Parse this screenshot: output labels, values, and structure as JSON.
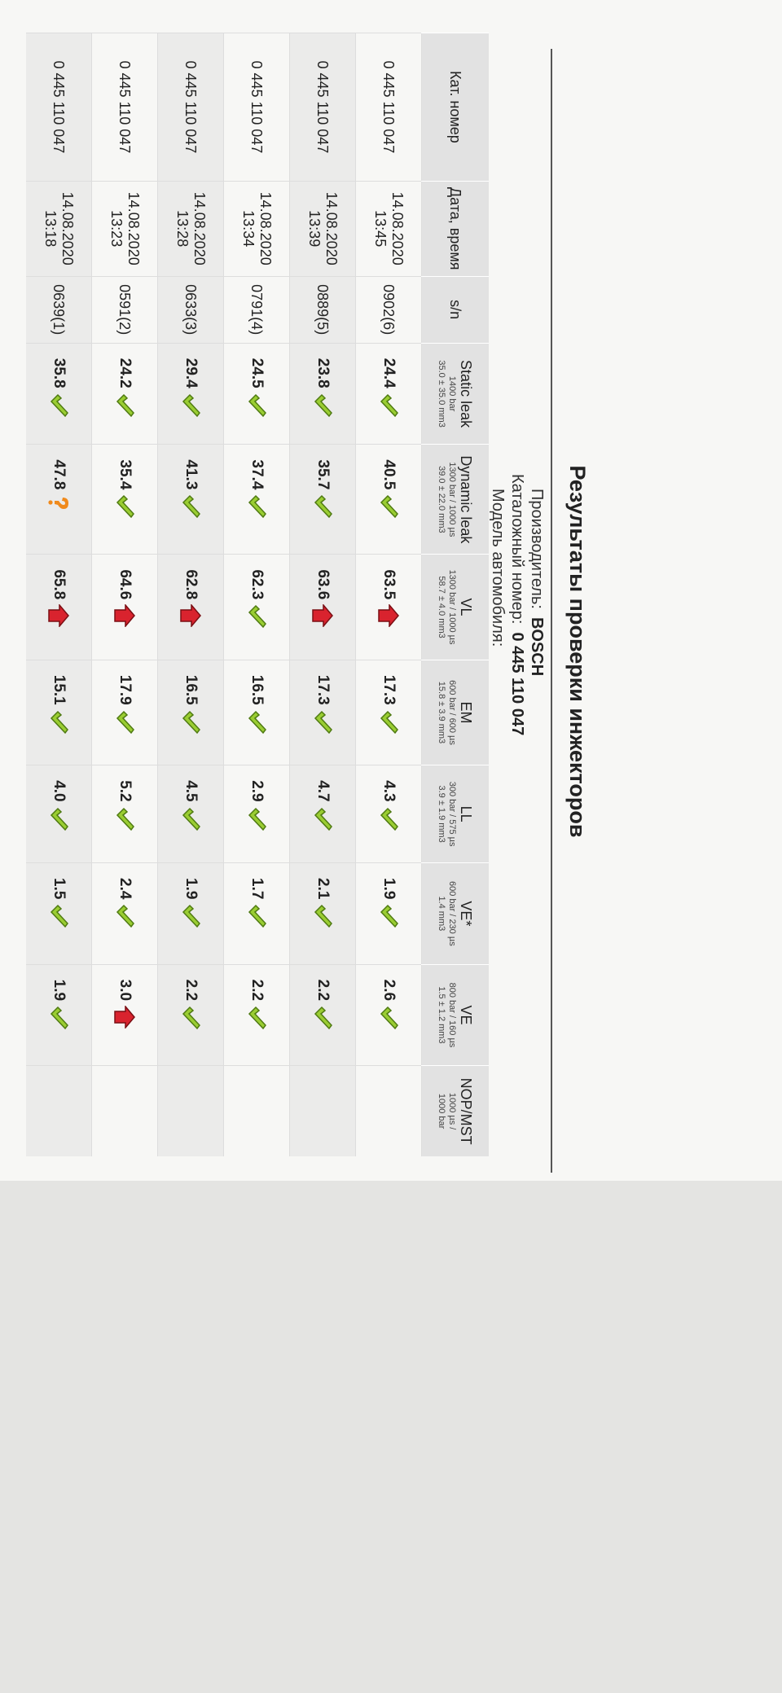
{
  "header": {
    "title": "Результаты проверки инжекторов",
    "manufacturer_label": "Производитель:",
    "manufacturer": "BOSCH",
    "catalog_label": "Каталожный номер:",
    "catalog": "0 445 110 047",
    "model_label": "Модель автомобиля:"
  },
  "table": {
    "columns": [
      {
        "name": "Кат. номер",
        "sub": []
      },
      {
        "name": "Дата, время",
        "sub": []
      },
      {
        "name": "s/n",
        "sub": []
      },
      {
        "name": "Static leak",
        "sub": [
          "1400 bar",
          "35.0 ± 35.0 mm3"
        ]
      },
      {
        "name": "Dynamic leak",
        "sub": [
          "1300 bar / 1000 µs",
          "39.0 ± 22.0 mm3"
        ]
      },
      {
        "name": "VL",
        "sub": [
          "1300 bar / 1000 µs",
          "58.7 ± 4.0 mm3"
        ]
      },
      {
        "name": "EM",
        "sub": [
          "600 bar / 600 µs",
          "15.8 ± 3.9 mm3"
        ]
      },
      {
        "name": "LL",
        "sub": [
          "300 bar / 575 µs",
          "3.9 ± 1.9 mm3"
        ]
      },
      {
        "name": "VE*",
        "sub": [
          "600 bar / 230 µs",
          "1.4 mm3"
        ]
      },
      {
        "name": "VE",
        "sub": [
          "800 bar / 160 µs",
          "1.5 ± 1.2 mm3"
        ]
      },
      {
        "name": "NOP/MST",
        "sub": [
          "1000 µs /",
          "1000 bar"
        ]
      }
    ],
    "rows": [
      {
        "cat": "0 445 110 047",
        "date": "14.08.2020",
        "time": "13:45",
        "sn": "0902(6)",
        "results": [
          {
            "value": "24.4",
            "mark": "ok"
          },
          {
            "value": "40.5",
            "mark": "ok"
          },
          {
            "value": "63.5",
            "mark": "high"
          },
          {
            "value": "17.3",
            "mark": "ok"
          },
          {
            "value": "4.3",
            "mark": "ok"
          },
          {
            "value": "1.9",
            "mark": "ok"
          },
          {
            "value": "2.6",
            "mark": "ok"
          }
        ]
      },
      {
        "cat": "0 445 110 047",
        "date": "14.08.2020",
        "time": "13:39",
        "sn": "0889(5)",
        "results": [
          {
            "value": "23.8",
            "mark": "ok"
          },
          {
            "value": "35.7",
            "mark": "ok"
          },
          {
            "value": "63.6",
            "mark": "high"
          },
          {
            "value": "17.3",
            "mark": "ok"
          },
          {
            "value": "4.7",
            "mark": "ok"
          },
          {
            "value": "2.1",
            "mark": "ok"
          },
          {
            "value": "2.2",
            "mark": "ok"
          }
        ]
      },
      {
        "cat": "0 445 110 047",
        "date": "14.08.2020",
        "time": "13:34",
        "sn": "0791(4)",
        "results": [
          {
            "value": "24.5",
            "mark": "ok"
          },
          {
            "value": "37.4",
            "mark": "ok"
          },
          {
            "value": "62.3",
            "mark": "ok"
          },
          {
            "value": "16.5",
            "mark": "ok"
          },
          {
            "value": "2.9",
            "mark": "ok"
          },
          {
            "value": "1.7",
            "mark": "ok"
          },
          {
            "value": "2.2",
            "mark": "ok"
          }
        ]
      },
      {
        "cat": "0 445 110 047",
        "date": "14.08.2020",
        "time": "13:28",
        "sn": "0633(3)",
        "results": [
          {
            "value": "29.4",
            "mark": "ok"
          },
          {
            "value": "41.3",
            "mark": "ok"
          },
          {
            "value": "62.8",
            "mark": "high"
          },
          {
            "value": "16.5",
            "mark": "ok"
          },
          {
            "value": "4.5",
            "mark": "ok"
          },
          {
            "value": "1.9",
            "mark": "ok"
          },
          {
            "value": "2.2",
            "mark": "ok"
          }
        ]
      },
      {
        "cat": "0 445 110 047",
        "date": "14.08.2020",
        "time": "13:23",
        "sn": "0591(2)",
        "results": [
          {
            "value": "24.2",
            "mark": "ok"
          },
          {
            "value": "35.4",
            "mark": "ok"
          },
          {
            "value": "64.6",
            "mark": "high"
          },
          {
            "value": "17.9",
            "mark": "ok"
          },
          {
            "value": "5.2",
            "mark": "ok"
          },
          {
            "value": "2.4",
            "mark": "ok"
          },
          {
            "value": "3.0",
            "mark": "high"
          }
        ]
      },
      {
        "cat": "0 445 110 047",
        "date": "14.08.2020",
        "time": "13:18",
        "sn": "0639(1)",
        "results": [
          {
            "value": "35.8",
            "mark": "ok"
          },
          {
            "value": "47.8",
            "mark": "question"
          },
          {
            "value": "65.8",
            "mark": "high"
          },
          {
            "value": "15.1",
            "mark": "ok"
          },
          {
            "value": "4.0",
            "mark": "ok"
          },
          {
            "value": "1.5",
            "mark": "ok"
          },
          {
            "value": "1.9",
            "mark": "ok"
          }
        ]
      }
    ]
  }
}
